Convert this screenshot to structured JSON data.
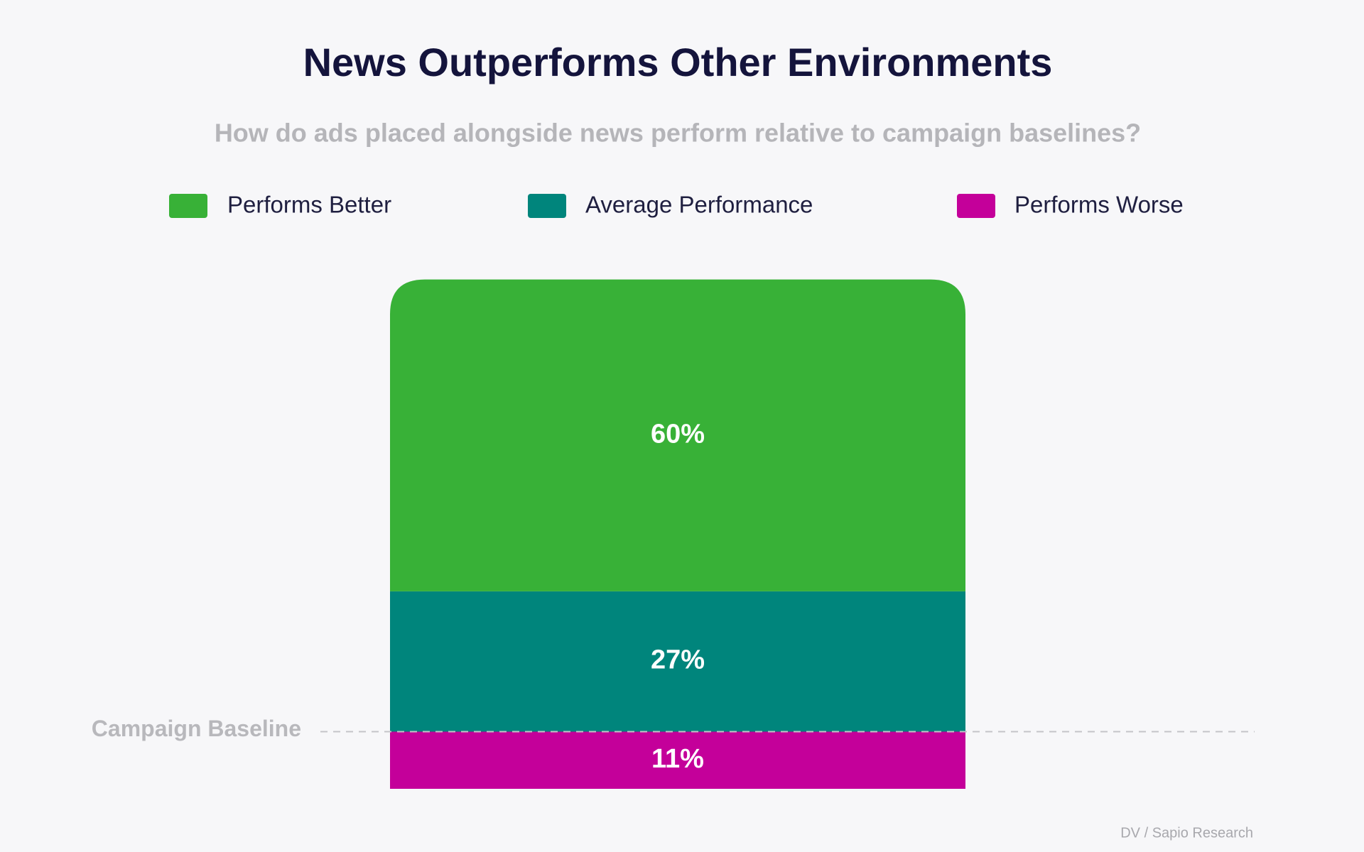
{
  "chart_data": {
    "type": "stacked-bar",
    "title": "News Outperforms Other Environments",
    "subtitle": "How do ads placed alongside news perform relative to campaign baselines?",
    "categories": [
      null
    ],
    "series": [
      {
        "name": "Performs Better",
        "color": "#38b137",
        "values": [
          60
        ],
        "value_labels": [
          "60%"
        ]
      },
      {
        "name": "Average Performance",
        "color": "#00857c",
        "values": [
          27
        ],
        "value_labels": [
          "27%"
        ]
      },
      {
        "name": "Performs Worse",
        "color": "#c4009a",
        "values": [
          11
        ],
        "value_labels": [
          "11%"
        ]
      }
    ],
    "annotation": "Campaign Baseline",
    "source": "DV / Sapio Research",
    "legend": "top"
  }
}
